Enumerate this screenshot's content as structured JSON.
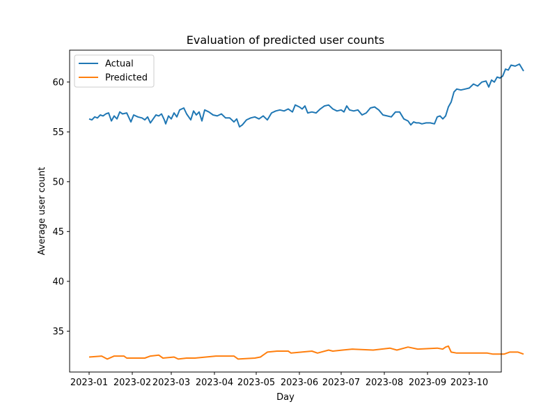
{
  "chart_data": {
    "type": "line",
    "title": "Evaluation of predicted user counts",
    "xlabel": "Day",
    "ylabel": "Average user count",
    "xlim": [
      "2022-12-18",
      "2023-10-24"
    ],
    "ylim": [
      30.9,
      63.2
    ],
    "x_ticks": [
      "2023-01",
      "2023-02",
      "2023-03",
      "2023-04",
      "2023-05",
      "2023-06",
      "2023-07",
      "2023-08",
      "2023-09",
      "2023-10"
    ],
    "x_tick_dates": [
      "2023-01-01",
      "2023-02-01",
      "2023-03-01",
      "2023-04-01",
      "2023-05-01",
      "2023-06-01",
      "2023-07-01",
      "2023-08-01",
      "2023-09-01",
      "2023-10-01"
    ],
    "y_ticks": [
      35,
      40,
      45,
      50,
      55,
      60
    ],
    "grid": false,
    "legend_position": "top-left",
    "series": [
      {
        "name": "Actual",
        "color": "#1f77b4",
        "points": [
          [
            "2023-01-01",
            56.3
          ],
          [
            "2023-01-03",
            56.2
          ],
          [
            "2023-01-05",
            56.5
          ],
          [
            "2023-01-07",
            56.4
          ],
          [
            "2023-01-09",
            56.7
          ],
          [
            "2023-01-11",
            56.6
          ],
          [
            "2023-01-13",
            56.8
          ],
          [
            "2023-01-15",
            56.9
          ],
          [
            "2023-01-17",
            56.1
          ],
          [
            "2023-01-19",
            56.6
          ],
          [
            "2023-01-21",
            56.3
          ],
          [
            "2023-01-23",
            57.0
          ],
          [
            "2023-01-25",
            56.8
          ],
          [
            "2023-01-28",
            56.9
          ],
          [
            "2023-01-31",
            56.0
          ],
          [
            "2023-02-02",
            56.7
          ],
          [
            "2023-02-05",
            56.5
          ],
          [
            "2023-02-08",
            56.4
          ],
          [
            "2023-02-10",
            56.2
          ],
          [
            "2023-02-12",
            56.5
          ],
          [
            "2023-02-14",
            55.9
          ],
          [
            "2023-02-16",
            56.3
          ],
          [
            "2023-02-18",
            56.7
          ],
          [
            "2023-02-20",
            56.6
          ],
          [
            "2023-02-22",
            56.8
          ],
          [
            "2023-02-24",
            56.2
          ],
          [
            "2023-02-25",
            55.8
          ],
          [
            "2023-02-27",
            56.6
          ],
          [
            "2023-03-01",
            56.3
          ],
          [
            "2023-03-03",
            56.9
          ],
          [
            "2023-03-05",
            56.5
          ],
          [
            "2023-03-07",
            57.2
          ],
          [
            "2023-03-10",
            57.4
          ],
          [
            "2023-03-12",
            56.8
          ],
          [
            "2023-03-15",
            56.2
          ],
          [
            "2023-03-17",
            57.1
          ],
          [
            "2023-03-19",
            56.7
          ],
          [
            "2023-03-21",
            57.0
          ],
          [
            "2023-03-23",
            56.1
          ],
          [
            "2023-03-25",
            57.2
          ],
          [
            "2023-03-28",
            57.0
          ],
          [
            "2023-03-31",
            56.7
          ],
          [
            "2023-04-03",
            56.6
          ],
          [
            "2023-04-06",
            56.8
          ],
          [
            "2023-04-09",
            56.4
          ],
          [
            "2023-04-12",
            56.4
          ],
          [
            "2023-04-15",
            56.0
          ],
          [
            "2023-04-17",
            56.3
          ],
          [
            "2023-04-19",
            55.5
          ],
          [
            "2023-04-21",
            55.7
          ],
          [
            "2023-04-24",
            56.2
          ],
          [
            "2023-04-27",
            56.4
          ],
          [
            "2023-04-30",
            56.5
          ],
          [
            "2023-05-03",
            56.3
          ],
          [
            "2023-05-06",
            56.6
          ],
          [
            "2023-05-09",
            56.2
          ],
          [
            "2023-05-12",
            56.9
          ],
          [
            "2023-05-15",
            57.1
          ],
          [
            "2023-05-18",
            57.2
          ],
          [
            "2023-05-21",
            57.1
          ],
          [
            "2023-05-24",
            57.3
          ],
          [
            "2023-05-27",
            57.0
          ],
          [
            "2023-05-29",
            57.7
          ],
          [
            "2023-06-01",
            57.5
          ],
          [
            "2023-06-03",
            57.3
          ],
          [
            "2023-06-05",
            57.6
          ],
          [
            "2023-06-07",
            56.9
          ],
          [
            "2023-06-10",
            57.0
          ],
          [
            "2023-06-13",
            56.9
          ],
          [
            "2023-06-16",
            57.3
          ],
          [
            "2023-06-19",
            57.6
          ],
          [
            "2023-06-22",
            57.7
          ],
          [
            "2023-06-25",
            57.3
          ],
          [
            "2023-06-28",
            57.1
          ],
          [
            "2023-07-01",
            57.2
          ],
          [
            "2023-07-03",
            57.0
          ],
          [
            "2023-07-05",
            57.6
          ],
          [
            "2023-07-07",
            57.2
          ],
          [
            "2023-07-10",
            57.1
          ],
          [
            "2023-07-13",
            57.2
          ],
          [
            "2023-07-16",
            56.7
          ],
          [
            "2023-07-19",
            56.9
          ],
          [
            "2023-07-22",
            57.4
          ],
          [
            "2023-07-25",
            57.5
          ],
          [
            "2023-07-28",
            57.2
          ],
          [
            "2023-07-31",
            56.7
          ],
          [
            "2023-08-03",
            56.6
          ],
          [
            "2023-08-06",
            56.5
          ],
          [
            "2023-08-09",
            57.0
          ],
          [
            "2023-08-12",
            57.0
          ],
          [
            "2023-08-15",
            56.3
          ],
          [
            "2023-08-18",
            56.1
          ],
          [
            "2023-08-20",
            55.7
          ],
          [
            "2023-08-22",
            56.0
          ],
          [
            "2023-08-24",
            55.9
          ],
          [
            "2023-08-26",
            55.9
          ],
          [
            "2023-08-28",
            55.8
          ],
          [
            "2023-08-31",
            55.9
          ],
          [
            "2023-09-03",
            55.9
          ],
          [
            "2023-09-06",
            55.8
          ],
          [
            "2023-09-08",
            56.5
          ],
          [
            "2023-09-10",
            56.6
          ],
          [
            "2023-09-12",
            56.3
          ],
          [
            "2023-09-14",
            56.6
          ],
          [
            "2023-09-16",
            57.5
          ],
          [
            "2023-09-18",
            58.0
          ],
          [
            "2023-09-20",
            59.0
          ],
          [
            "2023-09-22",
            59.3
          ],
          [
            "2023-09-25",
            59.2
          ],
          [
            "2023-09-28",
            59.3
          ],
          [
            "2023-10-01",
            59.4
          ],
          [
            "2023-10-04",
            59.8
          ],
          [
            "2023-10-07",
            59.6
          ],
          [
            "2023-10-10",
            60.0
          ],
          [
            "2023-10-13",
            60.1
          ],
          [
            "2023-10-15",
            59.5
          ],
          [
            "2023-10-17",
            60.2
          ],
          [
            "2023-10-19",
            60.0
          ],
          [
            "2023-10-21",
            60.5
          ],
          [
            "2023-10-23",
            60.4
          ],
          [
            "2023-10-25",
            60.6
          ],
          [
            "2023-10-27",
            61.3
          ],
          [
            "2023-10-29",
            61.2
          ],
          [
            "2023-10-31",
            61.7
          ],
          [
            "2023-11-03",
            61.6
          ],
          [
            "2023-11-06",
            61.8
          ],
          [
            "2023-11-09",
            61.1
          ]
        ]
      },
      {
        "name": "Predicted",
        "color": "#ff7f0e",
        "points": [
          [
            "2023-01-01",
            32.4
          ],
          [
            "2023-01-10",
            32.5
          ],
          [
            "2023-01-14",
            32.2
          ],
          [
            "2023-01-19",
            32.5
          ],
          [
            "2023-01-26",
            32.5
          ],
          [
            "2023-01-28",
            32.3
          ],
          [
            "2023-02-10",
            32.3
          ],
          [
            "2023-02-14",
            32.5
          ],
          [
            "2023-02-20",
            32.6
          ],
          [
            "2023-02-23",
            32.3
          ],
          [
            "2023-03-03",
            32.4
          ],
          [
            "2023-03-06",
            32.2
          ],
          [
            "2023-03-12",
            32.3
          ],
          [
            "2023-03-18",
            32.3
          ],
          [
            "2023-04-02",
            32.5
          ],
          [
            "2023-04-15",
            32.5
          ],
          [
            "2023-04-18",
            32.2
          ],
          [
            "2023-04-30",
            32.3
          ],
          [
            "2023-05-04",
            32.4
          ],
          [
            "2023-05-09",
            32.9
          ],
          [
            "2023-05-16",
            33.0
          ],
          [
            "2023-05-24",
            33.0
          ],
          [
            "2023-05-26",
            32.8
          ],
          [
            "2023-06-10",
            33.0
          ],
          [
            "2023-06-14",
            32.8
          ],
          [
            "2023-06-22",
            33.1
          ],
          [
            "2023-06-25",
            33.0
          ],
          [
            "2023-07-02",
            33.1
          ],
          [
            "2023-07-09",
            33.2
          ],
          [
            "2023-07-24",
            33.1
          ],
          [
            "2023-08-05",
            33.3
          ],
          [
            "2023-08-10",
            33.1
          ],
          [
            "2023-08-18",
            33.4
          ],
          [
            "2023-08-25",
            33.2
          ],
          [
            "2023-09-08",
            33.3
          ],
          [
            "2023-09-12",
            33.2
          ],
          [
            "2023-09-14",
            33.4
          ],
          [
            "2023-09-16",
            33.5
          ],
          [
            "2023-09-18",
            32.9
          ],
          [
            "2023-09-22",
            32.8
          ],
          [
            "2023-10-05",
            32.8
          ],
          [
            "2023-10-14",
            32.8
          ],
          [
            "2023-10-18",
            32.7
          ],
          [
            "2023-10-26",
            32.7
          ],
          [
            "2023-10-30",
            32.9
          ],
          [
            "2023-11-05",
            32.9
          ],
          [
            "2023-11-09",
            32.7
          ]
        ]
      }
    ]
  }
}
